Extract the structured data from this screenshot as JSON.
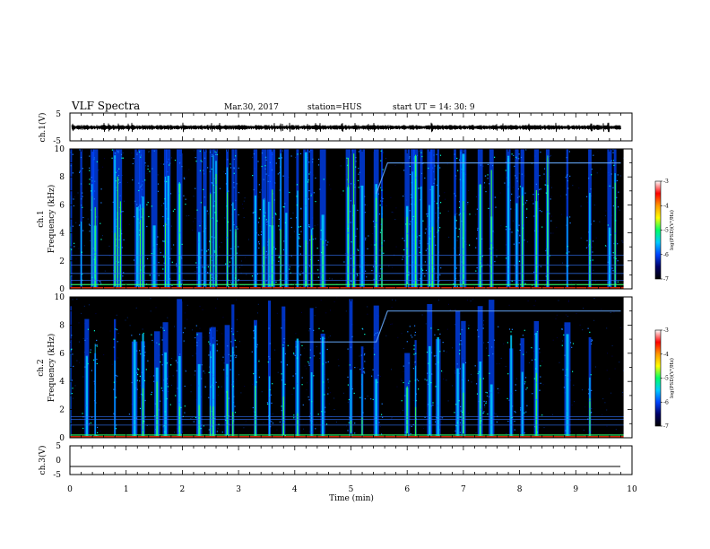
{
  "header": {
    "title": "VLF Spectra",
    "date": "Mar.30, 2017",
    "station": "station=HUS",
    "start": "start  UT =   14: 30: 9"
  },
  "chart_data": {
    "type": "spectrogram",
    "x": {
      "label": "Time  (min)",
      "range": [
        0,
        10
      ],
      "ticks": [
        "0",
        "1",
        "2",
        "3",
        "4",
        "5",
        "6",
        "7",
        "8",
        "9",
        "10"
      ]
    },
    "panels": [
      {
        "name": "ch1-waveform",
        "ylabel": "ch.1(V)",
        "yrange": [
          -5,
          5
        ],
        "yticks": [
          "5",
          "-5"
        ]
      },
      {
        "name": "ch1-spectrogram",
        "ylabel": "ch.1\nFrequency  (kHz)",
        "yrange": [
          0,
          10
        ],
        "yticks": [
          "0",
          "2",
          "4",
          "6",
          "8",
          "10"
        ],
        "bursts": [
          0.0,
          0.2,
          0.4,
          0.45,
          0.8,
          0.85,
          0.9,
          1.2,
          1.25,
          1.3,
          1.5,
          1.7,
          1.75,
          1.95,
          2.3,
          2.4,
          2.5,
          2.55,
          2.6,
          2.8,
          2.9,
          2.95,
          3.3,
          3.45,
          3.55,
          3.6,
          3.75,
          3.85,
          4.05,
          4.2,
          4.3,
          4.5,
          4.95,
          5.05,
          5.2,
          5.45,
          5.55,
          6.0,
          6.1,
          6.15,
          6.25,
          6.4,
          6.45,
          6.55,
          6.85,
          6.95,
          7.0,
          7.3,
          7.5,
          7.8,
          7.95,
          8.05,
          8.3,
          8.5,
          8.85,
          9.25,
          9.6,
          9.7
        ],
        "riser": {
          "x": [
            5.45,
            5.65,
            9.8
          ],
          "y": [
            6.8,
            9.0,
            9.0
          ]
        },
        "bands_khz": [
          0.3,
          0.6,
          1.1,
          1.7,
          2.4
        ]
      },
      {
        "name": "ch2-spectrogram",
        "ylabel": "ch.2\nFrequency  (kHz)",
        "yrange": [
          0,
          10
        ],
        "yticks": [
          "0",
          "2",
          "4",
          "6",
          "8",
          "10"
        ],
        "bursts": [
          0.0,
          0.3,
          0.45,
          0.8,
          1.15,
          1.3,
          1.55,
          1.7,
          1.95,
          2.3,
          2.5,
          2.55,
          2.8,
          2.9,
          3.3,
          3.55,
          3.8,
          4.05,
          4.3,
          4.5,
          5.0,
          5.2,
          5.45,
          6.0,
          6.15,
          6.4,
          6.55,
          6.9,
          7.0,
          7.3,
          7.5,
          7.85,
          8.05,
          8.3,
          8.85,
          9.25
        ],
        "riser": {
          "x": [
            4.1,
            5.45,
            5.65,
            9.8
          ],
          "y": [
            6.8,
            6.8,
            9.0,
            9.0
          ]
        },
        "bands_khz": [
          0.2,
          0.9,
          1.3,
          1.5
        ]
      },
      {
        "name": "ch3-waveform",
        "ylabel": "ch.3(V)",
        "yrange": [
          -5,
          5
        ],
        "yticks": [
          "5",
          "0",
          "-5"
        ],
        "level": -2.2
      }
    ],
    "colorbar": {
      "label": "log(PSD)(V²/Hz)",
      "range": [
        -7,
        -3
      ],
      "ticks": [
        "-3",
        "-4",
        "-5",
        "-6",
        "-7"
      ],
      "colors": [
        "#ffffff",
        "#ff0000",
        "#ff9900",
        "#ffff00",
        "#00ff66",
        "#00ccff",
        "#0044ff",
        "#000066",
        "#000000"
      ]
    }
  }
}
